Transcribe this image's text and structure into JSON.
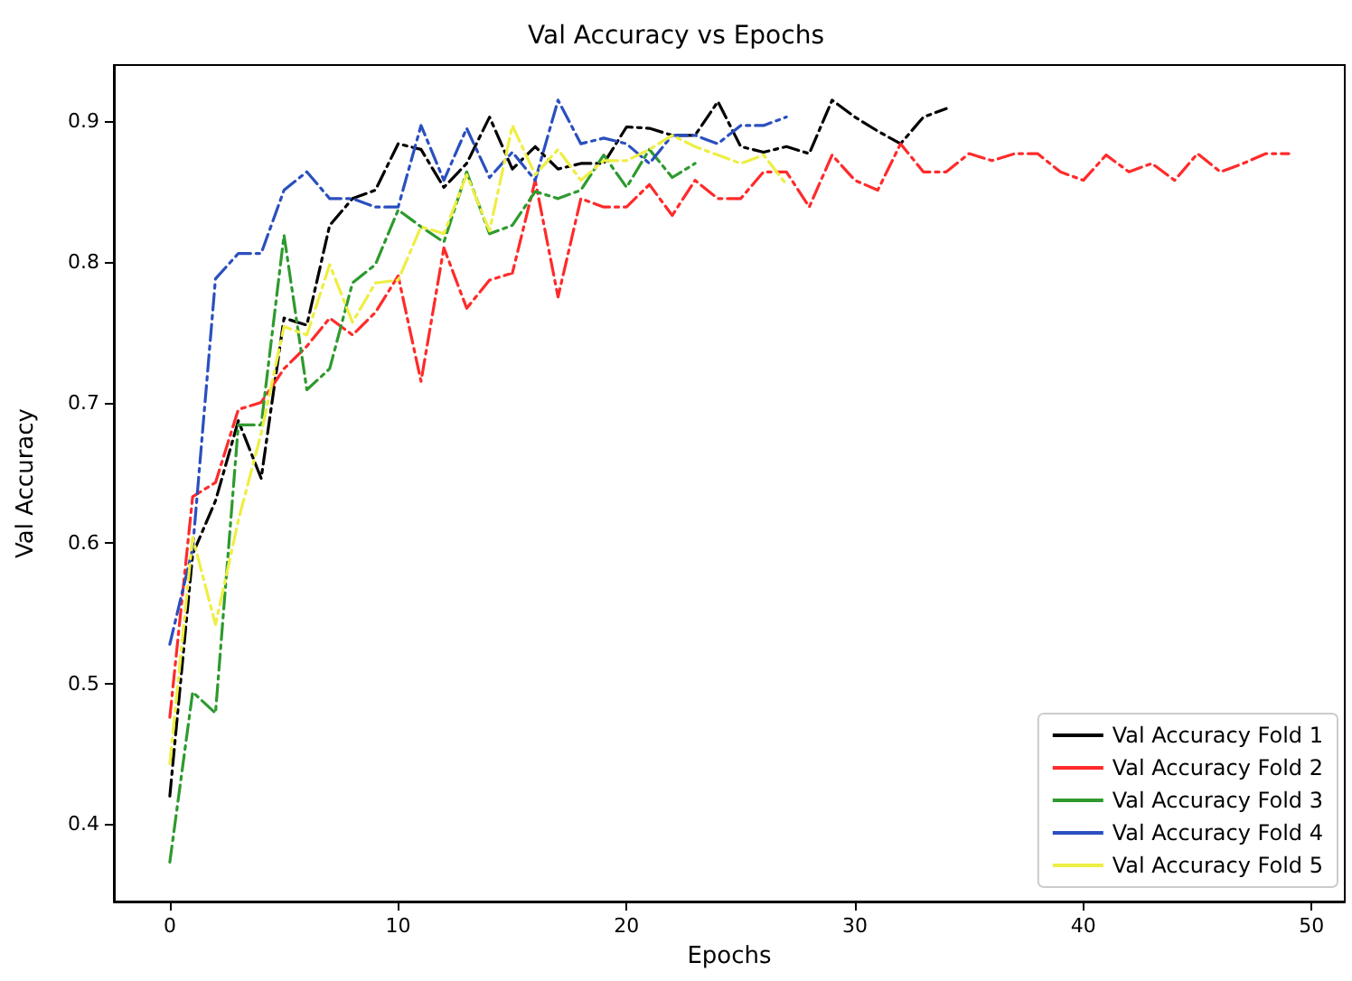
{
  "chart_data": {
    "type": "line",
    "title": "Val Accuracy vs Epochs",
    "xlabel": "Epochs",
    "ylabel": "Val Accuracy",
    "xlim": [
      -2.45,
      51.45
    ],
    "xticks": [
      0,
      10,
      20,
      30,
      40,
      50
    ],
    "ylim": [
      0.345,
      0.94
    ],
    "yticks": [
      0.4,
      0.5,
      0.6,
      0.7,
      0.8,
      0.9
    ],
    "grid": false,
    "legend": "bottom right",
    "marker": "none",
    "line_style": "dashed",
    "series": [
      {
        "name": "Val Accuracy Fold 1",
        "color": "#000000",
        "x": [
          0,
          1,
          2,
          3,
          4,
          5,
          6,
          7,
          8,
          9,
          10,
          11,
          12,
          13,
          14,
          15,
          16,
          17,
          18,
          19,
          20,
          21,
          22,
          23,
          24,
          25,
          26,
          27,
          28,
          29,
          30,
          31,
          32,
          33,
          34
        ],
        "values": [
          0.42,
          0.592,
          0.63,
          0.687,
          0.646,
          0.76,
          0.755,
          0.826,
          0.845,
          0.851,
          0.884,
          0.88,
          0.853,
          0.87,
          0.903,
          0.866,
          0.882,
          0.866,
          0.87,
          0.87,
          0.896,
          0.895,
          0.89,
          0.89,
          0.914,
          0.882,
          0.878,
          0.882,
          0.877,
          0.915,
          0.903,
          0.893,
          0.884,
          0.903,
          0.909
        ]
      },
      {
        "name": "Val Accuracy Fold 2",
        "color": "#ff2a2a",
        "x": [
          0,
          1,
          2,
          3,
          4,
          5,
          6,
          7,
          8,
          9,
          10,
          11,
          12,
          13,
          14,
          15,
          16,
          17,
          18,
          19,
          20,
          21,
          22,
          23,
          24,
          25,
          26,
          27,
          28,
          29,
          30,
          31,
          32,
          33,
          34,
          35,
          36,
          37,
          38,
          39,
          40,
          41,
          42,
          43,
          44,
          45,
          46,
          47,
          48,
          49
        ],
        "values": [
          0.476,
          0.633,
          0.643,
          0.695,
          0.7,
          0.724,
          0.74,
          0.76,
          0.748,
          0.764,
          0.79,
          0.715,
          0.81,
          0.767,
          0.787,
          0.792,
          0.858,
          0.775,
          0.845,
          0.839,
          0.839,
          0.855,
          0.833,
          0.858,
          0.845,
          0.845,
          0.864,
          0.864,
          0.839,
          0.876,
          0.858,
          0.851,
          0.884,
          0.864,
          0.864,
          0.877,
          0.872,
          0.877,
          0.877,
          0.864,
          0.858,
          0.876,
          0.864,
          0.87,
          0.858,
          0.877,
          0.864,
          0.87,
          0.877,
          0.877
        ]
      },
      {
        "name": "Val Accuracy Fold 3",
        "color": "#2e9a2e",
        "x": [
          0,
          1,
          2,
          3,
          4,
          5,
          6,
          7,
          8,
          9,
          10,
          11,
          12,
          13,
          14,
          15,
          16,
          17,
          18,
          19,
          20,
          21,
          22,
          23
        ],
        "values": [
          0.373,
          0.494,
          0.479,
          0.684,
          0.684,
          0.819,
          0.709,
          0.724,
          0.785,
          0.798,
          0.837,
          0.825,
          0.814,
          0.864,
          0.82,
          0.826,
          0.85,
          0.845,
          0.851,
          0.876,
          0.853,
          0.88,
          0.86,
          0.87
        ]
      },
      {
        "name": "Val Accuracy Fold 4",
        "color": "#2a4fbf",
        "x": [
          0,
          1,
          2,
          3,
          4,
          5,
          6,
          7,
          8,
          9,
          10,
          11,
          12,
          13,
          14,
          15,
          16,
          17,
          18,
          19,
          20,
          21,
          22,
          23,
          24,
          25,
          26,
          27
        ],
        "values": [
          0.528,
          0.596,
          0.788,
          0.806,
          0.806,
          0.851,
          0.864,
          0.845,
          0.845,
          0.839,
          0.839,
          0.897,
          0.858,
          0.895,
          0.86,
          0.878,
          0.858,
          0.915,
          0.884,
          0.888,
          0.884,
          0.87,
          0.89,
          0.89,
          0.884,
          0.897,
          0.897,
          0.903
        ]
      },
      {
        "name": "Val Accuracy Fold 5",
        "color": "#eeee44",
        "x": [
          0,
          1,
          2,
          3,
          4,
          5,
          6,
          7,
          8,
          9,
          10,
          11,
          12,
          13,
          14,
          15,
          16,
          17,
          18,
          19,
          20,
          21,
          22,
          23,
          24,
          25,
          26,
          27
        ],
        "values": [
          0.443,
          0.604,
          0.542,
          0.616,
          0.678,
          0.754,
          0.748,
          0.798,
          0.757,
          0.785,
          0.787,
          0.825,
          0.82,
          0.862,
          0.822,
          0.897,
          0.862,
          0.88,
          0.858,
          0.872,
          0.872,
          0.88,
          0.89,
          0.882,
          0.876,
          0.87,
          0.876,
          0.855
        ]
      }
    ]
  }
}
